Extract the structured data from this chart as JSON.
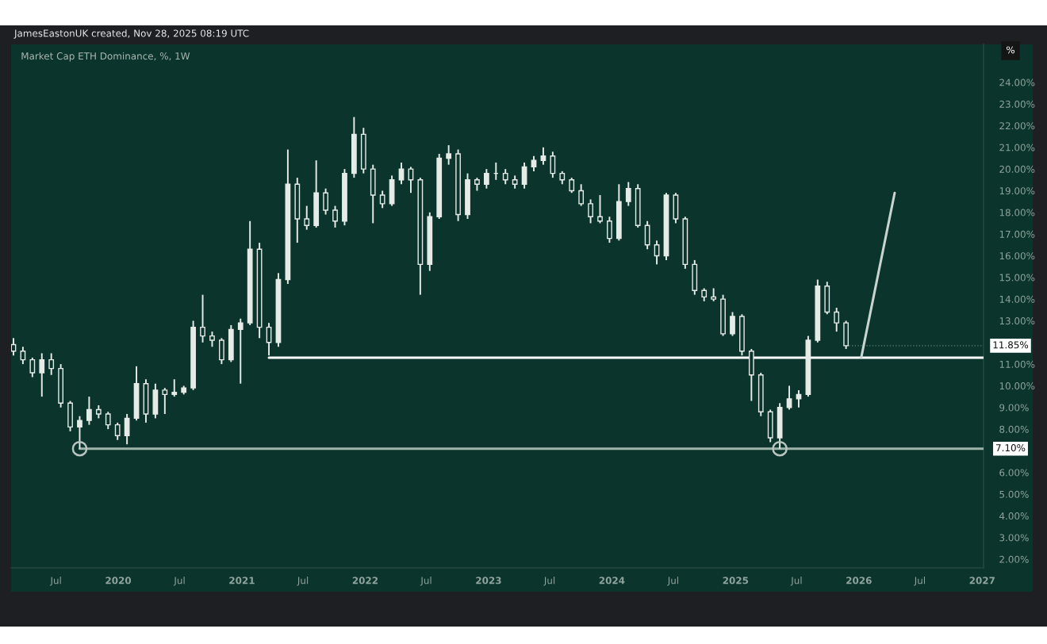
{
  "chart_data": {
    "type": "candlestick",
    "title": "Market Cap ETH Dominance, %, 1W",
    "subtitle": "JamesEastonUK created, Nov 28, 2025 08:19 UTC",
    "series": [
      {
        "color": "#e6ebe8",
        "x": [
          "2019-02-25",
          "2019-03-25",
          "2019-04-22",
          "2019-05-20",
          "2019-06-17",
          "2019-07-15",
          "2019-08-12",
          "2019-09-09",
          "2019-10-07",
          "2019-11-04",
          "2019-12-02",
          "2019-12-30",
          "2020-01-27",
          "2020-02-24",
          "2020-03-23",
          "2020-04-20",
          "2020-05-18",
          "2020-06-15",
          "2020-07-13",
          "2020-08-10",
          "2020-09-07",
          "2020-10-05",
          "2020-11-02",
          "2020-11-30",
          "2020-12-28",
          "2021-01-25",
          "2021-02-22",
          "2021-03-22",
          "2021-04-19",
          "2021-05-17",
          "2021-06-14",
          "2021-07-12",
          "2021-08-09",
          "2021-09-06",
          "2021-10-04",
          "2021-11-01",
          "2021-11-29",
          "2021-12-27",
          "2022-01-24",
          "2022-02-21",
          "2022-03-21",
          "2022-04-18",
          "2022-05-16",
          "2022-06-13",
          "2022-07-11",
          "2022-08-08",
          "2022-09-05",
          "2022-10-03",
          "2022-10-31",
          "2022-11-28",
          "2022-12-26",
          "2023-01-23",
          "2023-02-20",
          "2023-03-20",
          "2023-04-17",
          "2023-05-15",
          "2023-06-12",
          "2023-07-10",
          "2023-08-07",
          "2023-09-04",
          "2023-10-02",
          "2023-10-30",
          "2023-11-27",
          "2023-12-25",
          "2024-01-22",
          "2024-02-19",
          "2024-03-18",
          "2024-04-15",
          "2024-05-13",
          "2024-06-10",
          "2024-07-08",
          "2024-08-05",
          "2024-09-02",
          "2024-09-30",
          "2024-10-28",
          "2024-11-25",
          "2024-12-23",
          "2025-01-20",
          "2025-02-17",
          "2025-03-17",
          "2025-04-14",
          "2025-05-12",
          "2025-06-09",
          "2025-07-07",
          "2025-08-04",
          "2025-09-01",
          "2025-09-29",
          "2025-10-27",
          "2025-11-24"
        ],
        "ohlc": [
          [
            11.9,
            12.2,
            11.4,
            11.6
          ],
          [
            11.6,
            11.8,
            11.0,
            11.2
          ],
          [
            11.2,
            11.3,
            10.4,
            10.6
          ],
          [
            10.6,
            11.5,
            9.5,
            11.2
          ],
          [
            11.2,
            11.5,
            10.5,
            10.8
          ],
          [
            10.8,
            11.0,
            9.0,
            9.2
          ],
          [
            9.2,
            9.3,
            7.9,
            8.1
          ],
          [
            8.1,
            8.6,
            7.1,
            8.4
          ],
          [
            8.4,
            9.5,
            8.2,
            8.9
          ],
          [
            8.9,
            9.1,
            8.5,
            8.7
          ],
          [
            8.7,
            8.8,
            8.0,
            8.2
          ],
          [
            8.2,
            8.3,
            7.5,
            7.7
          ],
          [
            7.7,
            8.7,
            7.3,
            8.5
          ],
          [
            8.5,
            10.9,
            8.4,
            10.1
          ],
          [
            10.1,
            10.3,
            8.3,
            8.7
          ],
          [
            8.7,
            10.1,
            8.5,
            9.8
          ],
          [
            9.8,
            9.9,
            8.7,
            9.6
          ],
          [
            9.6,
            10.3,
            9.5,
            9.7
          ],
          [
            9.7,
            10.0,
            9.6,
            9.9
          ],
          [
            9.9,
            13.0,
            9.8,
            12.7
          ],
          [
            12.7,
            14.2,
            12.0,
            12.3
          ],
          [
            12.3,
            12.5,
            11.8,
            12.1
          ],
          [
            12.1,
            12.2,
            11.0,
            11.2
          ],
          [
            11.2,
            12.8,
            11.1,
            12.6
          ],
          [
            12.6,
            13.1,
            10.1,
            12.9
          ],
          [
            12.9,
            17.6,
            12.8,
            16.3
          ],
          [
            16.3,
            16.6,
            12.2,
            12.7
          ],
          [
            12.7,
            12.9,
            11.4,
            12.0
          ],
          [
            12.0,
            15.2,
            11.8,
            14.9
          ],
          [
            14.9,
            20.9,
            14.7,
            19.3
          ],
          [
            19.3,
            19.6,
            16.6,
            17.7
          ],
          [
            17.7,
            18.3,
            17.2,
            17.4
          ],
          [
            17.4,
            20.4,
            17.3,
            18.9
          ],
          [
            18.9,
            19.1,
            17.9,
            18.1
          ],
          [
            18.1,
            18.3,
            17.3,
            17.6
          ],
          [
            17.6,
            20.0,
            17.4,
            19.8
          ],
          [
            19.8,
            22.4,
            19.6,
            21.6
          ],
          [
            21.6,
            21.9,
            19.8,
            20.0
          ],
          [
            20.0,
            20.2,
            17.5,
            18.8
          ],
          [
            18.8,
            19.0,
            18.2,
            18.4
          ],
          [
            18.4,
            19.7,
            18.3,
            19.5
          ],
          [
            19.5,
            20.3,
            19.3,
            20.0
          ],
          [
            20.0,
            20.1,
            18.9,
            19.5
          ],
          [
            19.5,
            19.6,
            14.2,
            15.6
          ],
          [
            15.6,
            18.0,
            15.3,
            17.8
          ],
          [
            17.8,
            20.7,
            17.7,
            20.5
          ],
          [
            20.5,
            21.1,
            20.2,
            20.7
          ],
          [
            20.7,
            20.9,
            17.6,
            17.9
          ],
          [
            17.9,
            19.8,
            17.7,
            19.5
          ],
          [
            19.5,
            19.6,
            19.0,
            19.3
          ],
          [
            19.3,
            20.0,
            19.1,
            19.8
          ],
          [
            19.8,
            20.3,
            19.5,
            19.8
          ],
          [
            19.8,
            20.0,
            19.3,
            19.5
          ],
          [
            19.5,
            19.7,
            19.1,
            19.3
          ],
          [
            19.3,
            20.3,
            19.1,
            20.1
          ],
          [
            20.1,
            20.6,
            19.9,
            20.4
          ],
          [
            20.4,
            21.0,
            20.2,
            20.6
          ],
          [
            20.6,
            20.8,
            19.6,
            19.8
          ],
          [
            19.8,
            19.9,
            19.3,
            19.5
          ],
          [
            19.5,
            19.6,
            18.9,
            19.0
          ],
          [
            19.0,
            19.3,
            18.3,
            18.4
          ],
          [
            18.4,
            18.6,
            17.5,
            17.8
          ],
          [
            17.8,
            18.8,
            17.5,
            17.6
          ],
          [
            17.6,
            17.8,
            16.6,
            16.8
          ],
          [
            16.8,
            19.3,
            16.7,
            18.5
          ],
          [
            18.5,
            19.4,
            18.3,
            19.1
          ],
          [
            19.1,
            19.3,
            17.3,
            17.4
          ],
          [
            17.4,
            17.6,
            16.3,
            16.5
          ],
          [
            16.5,
            16.7,
            15.6,
            16.0
          ],
          [
            16.0,
            18.9,
            15.8,
            18.8
          ],
          [
            18.8,
            18.9,
            17.5,
            17.7
          ],
          [
            17.7,
            17.8,
            15.4,
            15.6
          ],
          [
            15.6,
            15.8,
            14.2,
            14.4
          ],
          [
            14.4,
            14.5,
            13.9,
            14.1
          ],
          [
            14.1,
            14.5,
            13.9,
            14.0
          ],
          [
            14.0,
            14.2,
            12.3,
            12.4
          ],
          [
            12.4,
            13.4,
            12.3,
            13.2
          ],
          [
            13.2,
            13.3,
            11.4,
            11.6
          ],
          [
            11.6,
            11.7,
            9.3,
            10.5
          ],
          [
            10.5,
            10.6,
            8.6,
            8.8
          ],
          [
            8.8,
            8.9,
            7.4,
            7.6
          ],
          [
            7.6,
            9.2,
            7.1,
            9.0
          ],
          [
            9.0,
            10.0,
            8.9,
            9.4
          ],
          [
            9.4,
            9.8,
            9.0,
            9.6
          ],
          [
            9.6,
            12.3,
            9.5,
            12.1
          ],
          [
            12.1,
            14.9,
            12.0,
            14.6
          ],
          [
            14.6,
            14.8,
            13.3,
            13.4
          ],
          [
            13.4,
            13.6,
            12.5,
            12.9
          ],
          [
            12.9,
            13.0,
            11.7,
            11.85
          ]
        ]
      },
      {
        "type": "line",
        "color": "#ffffff",
        "x": [
          "2021-03-22",
          "2027-01-05"
        ],
        "values": [
          11.3,
          11.3
        ]
      },
      {
        "type": "line",
        "color": "#9fb3ab",
        "x": [
          "2019-09-09",
          "2027-01-05"
        ],
        "values": [
          7.1,
          7.1
        ]
      },
      {
        "type": "line",
        "color": "#c9d3cf",
        "x": [
          "2026-01-08",
          "2026-04-17"
        ],
        "values": [
          11.3,
          18.9
        ]
      },
      {
        "type": "scatter",
        "color": "#b8c4bf",
        "marker": "circle",
        "x": [
          "2019-09-09",
          "2025-05-12"
        ],
        "values": [
          7.1,
          7.1
        ]
      }
    ],
    "annotations": [
      "%",
      {
        "text": "11.85%",
        "x": "2025-11-24",
        "y": 11.85
      },
      {
        "text": "7.10%",
        "x": "2027-01-05",
        "y": 7.1
      }
    ],
    "xlim": [
      "2019-02-18",
      "2027-01-05"
    ],
    "xticks": [
      {
        "value": "2019-07",
        "label": "Jul"
      },
      "2020",
      {
        "value": "2020-07",
        "label": "Jul"
      },
      "2021",
      {
        "value": "2021-07",
        "label": "Jul"
      },
      "2022",
      {
        "value": "2022-07",
        "label": "Jul"
      },
      "2023",
      {
        "value": "2023-07",
        "label": "Jul"
      },
      "2024",
      {
        "value": "2024-07",
        "label": "Jul"
      },
      "2025",
      {
        "value": "2025-07",
        "label": "Jul"
      },
      "2026",
      {
        "value": "2026-07",
        "label": "Jul"
      },
      "2027"
    ],
    "ylim": [
      1.6,
      25.75
    ],
    "yticks": [
      {
        "value": 2,
        "label": "2.00%"
      },
      {
        "value": 3,
        "label": "3.00%"
      },
      {
        "value": 4,
        "label": "4.00%"
      },
      {
        "value": 5,
        "label": "5.00%"
      },
      {
        "value": 6,
        "label": "6.00%"
      },
      {
        "value": 8,
        "label": "8.00%"
      },
      {
        "value": 9,
        "label": "9.00%"
      },
      {
        "value": 10,
        "label": "10.00%"
      },
      {
        "value": 11,
        "label": "11.00%"
      },
      {
        "value": 13,
        "label": "13.00%"
      },
      {
        "value": 14,
        "label": "14.00%"
      },
      {
        "value": 15,
        "label": "15.00%"
      },
      {
        "value": 16,
        "label": "16.00%"
      },
      {
        "value": 17,
        "label": "17.00%"
      },
      {
        "value": 18,
        "label": "18.00%"
      },
      {
        "value": 19,
        "label": "19.00%"
      },
      {
        "value": 20,
        "label": "20.00%"
      },
      {
        "value": 21,
        "label": "21.00%"
      },
      {
        "value": 22,
        "label": "22.00%"
      },
      {
        "value": 23,
        "label": "23.00%"
      },
      {
        "value": 24,
        "label": "24.00%"
      }
    ]
  }
}
